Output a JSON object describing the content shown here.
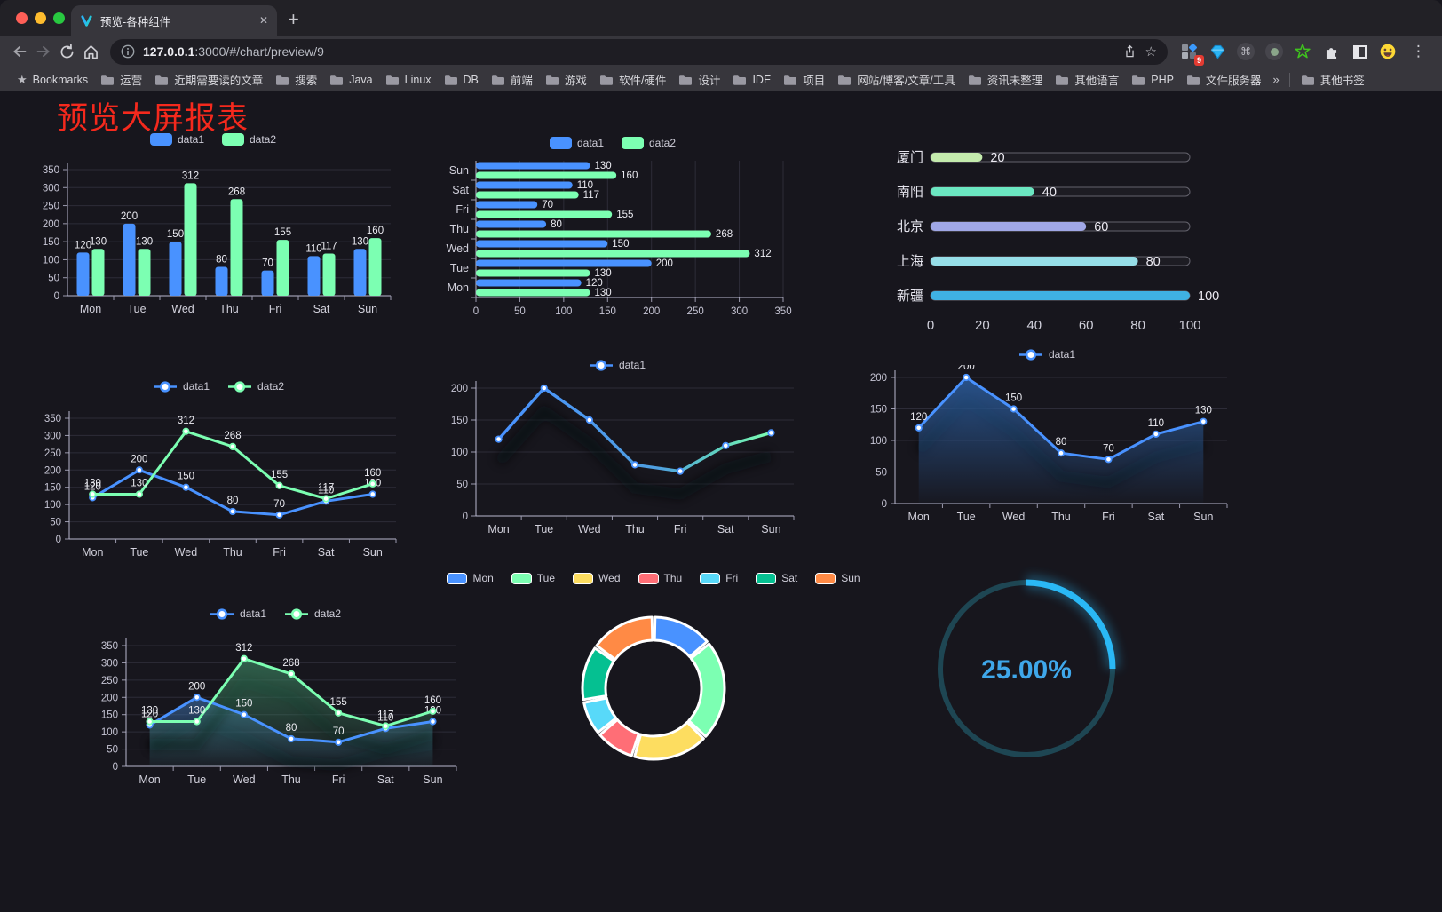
{
  "browser": {
    "tab_title": "预览-各种组件",
    "tab_close_glyph": "✕",
    "new_tab_glyph": "+",
    "url_host": "127.0.0.1",
    "url_rest": ":3000/#/chart/preview/9",
    "bookmarks_label": "Bookmarks",
    "bookmarks": [
      "运营",
      "近期需要读的文章",
      "搜索",
      "Java",
      "Linux",
      "DB",
      "前端",
      "游戏",
      "软件/硬件",
      "设计",
      "IDE",
      "项目",
      "网站/博客/文章/工具",
      "资讯未整理",
      "其他语言",
      "PHP",
      "文件服务器"
    ],
    "bookmarks_overflow_glyph": "»",
    "other_bookmarks_label": "其他书签",
    "extension_badge": "9",
    "menu_glyph": "⋮",
    "cmd_glyph": "⌘",
    "star_outline_glyph": "☆",
    "bookmarks_star_glyph": "★"
  },
  "page": {
    "title": "预览大屏报表",
    "title_color": "#f5291d",
    "background": "#17161d"
  },
  "chart_data": [
    {
      "id": "grouped-bar",
      "type": "bar",
      "categories": [
        "Mon",
        "Tue",
        "Wed",
        "Thu",
        "Fri",
        "Sat",
        "Sun"
      ],
      "series": [
        {
          "name": "data1",
          "color": "#4992ff",
          "values": [
            120,
            200,
            150,
            80,
            70,
            110,
            130
          ]
        },
        {
          "name": "data2",
          "color": "#7cffb2",
          "values": [
            130,
            130,
            312,
            268,
            155,
            117,
            160
          ]
        }
      ],
      "ylim": [
        0,
        350
      ],
      "ytick_step": 50,
      "legend_position": "top",
      "grid": true
    },
    {
      "id": "horizontal-grouped-bar",
      "type": "bar",
      "orientation": "horizontal",
      "categories": [
        "Mon",
        "Tue",
        "Wed",
        "Thu",
        "Fri",
        "Sat",
        "Sun"
      ],
      "series": [
        {
          "name": "data1",
          "color": "#4992ff",
          "values": [
            120,
            200,
            150,
            80,
            70,
            110,
            130
          ]
        },
        {
          "name": "data2",
          "color": "#7cffb2",
          "values": [
            130,
            130,
            312,
            268,
            155,
            117,
            160
          ]
        }
      ],
      "xlim": [
        0,
        350
      ],
      "xtick_step": 50,
      "legend_position": "top",
      "first_category_at_bottom": true
    },
    {
      "id": "city-progress",
      "type": "bar",
      "orientation": "horizontal",
      "categories": [
        "厦门",
        "南阳",
        "北京",
        "上海",
        "新疆"
      ],
      "values": [
        20,
        40,
        60,
        80,
        100
      ],
      "colors": [
        "#c4ebad",
        "#6be6c1",
        "#a0a7e6",
        "#96dee8",
        "#3fb1e3"
      ],
      "xlim": [
        0,
        100
      ],
      "xticks": [
        0,
        20,
        40,
        60,
        80,
        100
      ]
    },
    {
      "id": "two-series-line",
      "type": "line",
      "categories": [
        "Mon",
        "Tue",
        "Wed",
        "Thu",
        "Fri",
        "Sat",
        "Sun"
      ],
      "series": [
        {
          "name": "data1",
          "color": "#4992ff",
          "values": [
            120,
            200,
            150,
            80,
            70,
            110,
            130
          ]
        },
        {
          "name": "data2",
          "color": "#7cffb2",
          "values": [
            130,
            130,
            312,
            268,
            155,
            117,
            160
          ]
        }
      ],
      "ylim": [
        0,
        350
      ],
      "ytick_step": 50,
      "value_labels": true,
      "legend_position": "top"
    },
    {
      "id": "gradient-line",
      "type": "line",
      "categories": [
        "Mon",
        "Tue",
        "Wed",
        "Thu",
        "Fri",
        "Sat",
        "Sun"
      ],
      "series": [
        {
          "name": "data1",
          "color_start": "#4992ff",
          "color_end": "#7cffb2",
          "values": [
            120,
            200,
            150,
            80,
            70,
            110,
            130
          ]
        }
      ],
      "ylim": [
        0,
        200
      ],
      "ytick_step": 50,
      "value_labels": false,
      "shadow": true,
      "legend_position": "top"
    },
    {
      "id": "area-single",
      "type": "area",
      "categories": [
        "Mon",
        "Tue",
        "Wed",
        "Thu",
        "Fri",
        "Sat",
        "Sun"
      ],
      "series": [
        {
          "name": "data1",
          "color": "#4992ff",
          "area_color": "#2b5d9e",
          "values": [
            120,
            200,
            150,
            80,
            70,
            110,
            130
          ]
        }
      ],
      "ylim": [
        0,
        200
      ],
      "ytick_step": 50,
      "value_labels": true,
      "shadow": true,
      "legend_position": "top"
    },
    {
      "id": "area-two-series",
      "type": "area",
      "categories": [
        "Mon",
        "Tue",
        "Wed",
        "Thu",
        "Fri",
        "Sat",
        "Sun"
      ],
      "series": [
        {
          "name": "data1",
          "color": "#4992ff",
          "area_color": "#3c6ea8",
          "values": [
            120,
            200,
            150,
            80,
            70,
            110,
            130
          ]
        },
        {
          "name": "data2",
          "color": "#7cffb2",
          "area_color": "#3f8f68",
          "values": [
            130,
            130,
            312,
            268,
            155,
            117,
            160
          ]
        }
      ],
      "ylim": [
        0,
        350
      ],
      "ytick_step": 50,
      "value_labels": true,
      "shadow": true,
      "legend_position": "top"
    },
    {
      "id": "weekday-donut",
      "type": "pie",
      "categories": [
        "Mon",
        "Tue",
        "Wed",
        "Thu",
        "Fri",
        "Sat",
        "Sun"
      ],
      "values": [
        120,
        200,
        150,
        80,
        70,
        110,
        130
      ],
      "colors": [
        "#4992ff",
        "#7cffb2",
        "#fddd60",
        "#ff6e76",
        "#58d9f9",
        "#05c091",
        "#ff8a45"
      ],
      "donut": true,
      "legend_position": "top"
    },
    {
      "id": "progress-gauge",
      "type": "gauge",
      "percent": 25,
      "label": "25.00%",
      "color": "#2ab8f5",
      "track_color": "#1e4653",
      "label_color": "#3fa7ea"
    }
  ]
}
